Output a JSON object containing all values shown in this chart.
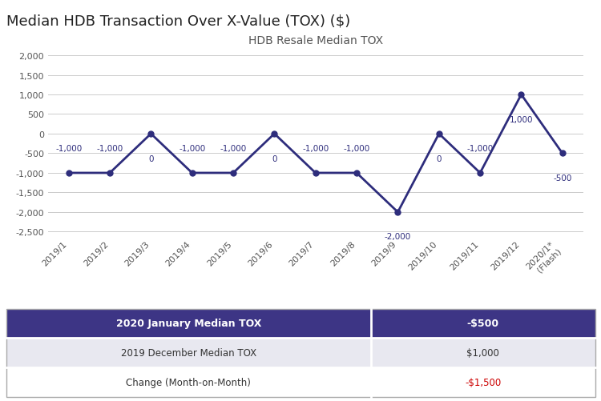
{
  "title": "Median HDB Transaction Over X-Value (TOX) ($)",
  "chart_title": "HDB Resale Median TOX",
  "x_labels": [
    "2019/1",
    "2019/2",
    "2019/3",
    "2019/4",
    "2019/5",
    "2019/6",
    "2019/7",
    "2019/8",
    "2019/9",
    "2019/10",
    "2019/11",
    "2019/12",
    "2020/1*\n(Flash)"
  ],
  "y_values": [
    -1000,
    -1000,
    0,
    -1000,
    -1000,
    0,
    -1000,
    -1000,
    -2000,
    0,
    -1000,
    1000,
    -500
  ],
  "data_labels": [
    "-1,000",
    "-1,000",
    "0",
    "-1,000",
    "-1,000",
    "0",
    "-1,000",
    "-1,000",
    "-2,000",
    "0",
    "-1,000",
    "1,000",
    "-500"
  ],
  "label_offsets_pts": [
    22,
    22,
    -22,
    22,
    22,
    -22,
    22,
    22,
    -22,
    -22,
    22,
    -22,
    -22
  ],
  "line_color": "#2e2d7c",
  "marker_color": "#2e2d7c",
  "background_color": "#ffffff",
  "grid_color": "#cccccc",
  "ylim": [
    -2600,
    2200
  ],
  "yticks": [
    -2500,
    -2000,
    -1500,
    -1000,
    -500,
    0,
    500,
    1000,
    1500,
    2000
  ],
  "table_rows": [
    {
      "label": "2020 January Median TOX",
      "value": "-$500",
      "bold": true,
      "bg": "#3d3585",
      "fg": "#ffffff",
      "value_fg": "#ffffff"
    },
    {
      "label": "2019 December Median TOX",
      "value": "$1,000",
      "bold": false,
      "bg": "#e8e8f0",
      "fg": "#333333",
      "value_fg": "#333333"
    },
    {
      "label": "Change (Month-on-Month)",
      "value": "-$1,500",
      "bold": false,
      "bg": "#ffffff",
      "fg": "#333333",
      "value_fg": "#cc0000"
    }
  ],
  "title_fontsize": 13,
  "chart_title_fontsize": 10,
  "tick_fontsize": 8,
  "label_fontsize": 7.5
}
